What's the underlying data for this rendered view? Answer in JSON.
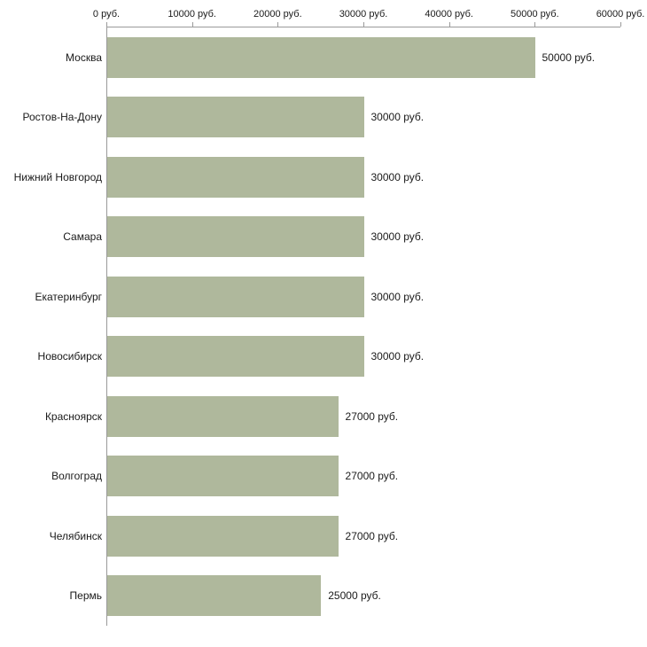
{
  "chart_data": {
    "type": "bar",
    "orientation": "horizontal",
    "title": "",
    "xlabel": "",
    "ylabel": "",
    "categories": [
      "Москва",
      "Ростов-На-Дону",
      "Нижний Новгород",
      "Самара",
      "Екатеринбург",
      "Новосибирск",
      "Красноярск",
      "Волгоград",
      "Челябинск",
      "Пермь"
    ],
    "values": [
      50000,
      30000,
      30000,
      30000,
      30000,
      30000,
      27000,
      27000,
      27000,
      25000
    ],
    "value_suffix": " руб.",
    "value_labels": [
      "50000 руб.",
      "30000 руб.",
      "30000 руб.",
      "30000 руб.",
      "30000 руб.",
      "30000 руб.",
      "27000 руб.",
      "27000 руб.",
      "27000 руб.",
      "25000 руб."
    ],
    "x_ticks": [
      0,
      10000,
      20000,
      30000,
      40000,
      50000,
      60000
    ],
    "x_tick_labels": [
      "0 руб.",
      "10000 руб.",
      "20000 руб.",
      "30000 руб.",
      "40000 руб.",
      "50000 руб.",
      "60000 руб."
    ],
    "xlim": [
      0,
      60000
    ],
    "grid": false,
    "legend": false,
    "colors": {
      "bar": "#afb89c",
      "axis": "#9a9a9a",
      "text": "#1a1a1a",
      "background": "#ffffff"
    }
  }
}
